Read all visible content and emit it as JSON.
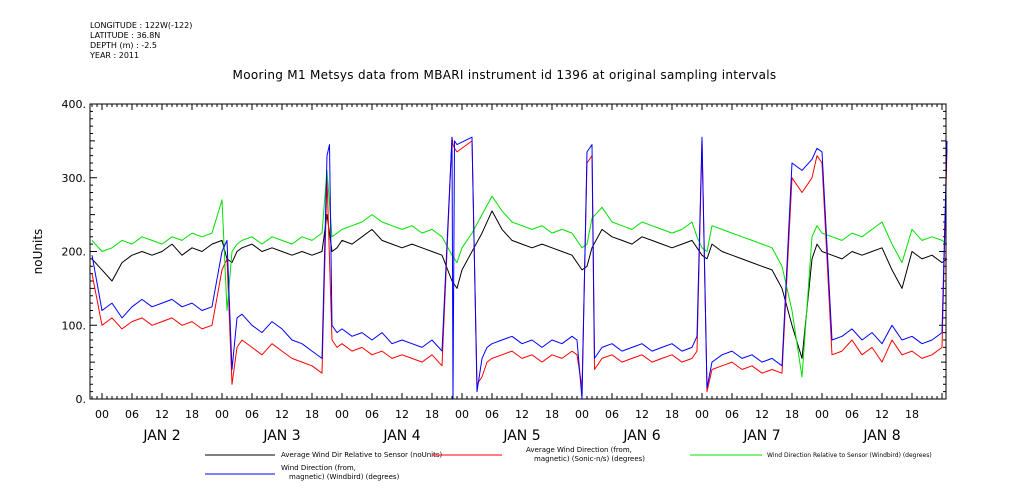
{
  "meta": {
    "longitude": "LONGITUDE : 122W(-122)",
    "latitude": "LATITUDE : 36.8N",
    "depth": "DEPTH (m) : -2.5",
    "year": "YEAR : 2011"
  },
  "chart_data": {
    "type": "line",
    "title": "Mooring M1 Metsys data from MBARI instrument id 1396 at original sampling intervals",
    "ylabel": "noUnits",
    "ylim": [
      0,
      400
    ],
    "yticks": [
      "0.",
      "100.",
      "200.",
      "300.",
      "400."
    ],
    "xlim_hours": [
      0,
      170
    ],
    "x_hour_ticks": [
      "00",
      "06",
      "12",
      "18",
      "00",
      "06",
      "12",
      "18",
      "00",
      "06",
      "12",
      "18",
      "00",
      "06",
      "12",
      "18",
      "00",
      "06",
      "12",
      "18",
      "00",
      "06",
      "12",
      "18",
      "00",
      "06",
      "12",
      "18"
    ],
    "x_day_labels": [
      "JAN  2",
      "JAN  3",
      "JAN  4",
      "JAN  5",
      "JAN  6",
      "JAN  7",
      "JAN  8"
    ],
    "grid": false,
    "legend_position": "bottom",
    "series": [
      {
        "name": "Average Wind Dir Relative to Sensor (noUnits)",
        "color": "#000000",
        "x": [
          -2,
          0,
          2,
          4,
          6,
          8,
          10,
          12,
          14,
          16,
          18,
          20,
          22,
          24,
          25,
          26,
          27,
          28,
          30,
          32,
          34,
          36,
          38,
          40,
          42,
          44,
          45,
          46,
          47,
          48,
          50,
          52,
          54,
          56,
          58,
          60,
          62,
          64,
          66,
          68,
          70,
          71,
          72,
          74,
          76,
          78,
          80,
          82,
          84,
          86,
          88,
          90,
          92,
          94,
          96,
          97,
          98,
          100,
          102,
          104,
          106,
          108,
          110,
          112,
          114,
          116,
          118,
          119,
          120,
          121,
          122,
          124,
          126,
          128,
          130,
          132,
          134,
          136,
          138,
          140,
          142,
          143,
          144,
          146,
          148,
          150,
          152,
          154,
          156,
          158,
          160,
          162,
          164,
          166,
          168,
          169
        ],
        "y": [
          190,
          175,
          160,
          185,
          195,
          200,
          195,
          200,
          210,
          195,
          205,
          200,
          210,
          215,
          190,
          185,
          200,
          205,
          210,
          200,
          205,
          200,
          195,
          200,
          195,
          200,
          250,
          200,
          205,
          215,
          210,
          220,
          230,
          215,
          210,
          205,
          210,
          205,
          200,
          195,
          160,
          150,
          175,
          200,
          225,
          255,
          230,
          215,
          210,
          205,
          210,
          205,
          200,
          195,
          175,
          180,
          205,
          230,
          220,
          215,
          210,
          220,
          215,
          210,
          205,
          210,
          215,
          205,
          195,
          190,
          210,
          200,
          195,
          190,
          185,
          180,
          175,
          150,
          100,
          55,
          190,
          210,
          200,
          195,
          190,
          200,
          195,
          200,
          205,
          175,
          150,
          200,
          190,
          195,
          185,
          190
        ]
      },
      {
        "name": "Average Wind Direction (from, magnetic) (Sonic-n/s) (degrees)",
        "color": "#ff0000",
        "x": [
          -2,
          0,
          2,
          4,
          6,
          8,
          10,
          12,
          14,
          16,
          18,
          20,
          22,
          24,
          25,
          26,
          27,
          28,
          30,
          32,
          34,
          36,
          38,
          40,
          42,
          44,
          45,
          46,
          47,
          48,
          50,
          52,
          54,
          56,
          58,
          60,
          62,
          64,
          66,
          68,
          70,
          70.2,
          70.5,
          71,
          74,
          75,
          76,
          77,
          78,
          80,
          82,
          84,
          86,
          88,
          90,
          92,
          94,
          95,
          96,
          97,
          98,
          98.5,
          100,
          102,
          104,
          106,
          108,
          110,
          112,
          114,
          116,
          118,
          119,
          120,
          121,
          122,
          124,
          126,
          128,
          130,
          132,
          134,
          136,
          138,
          140,
          142,
          143,
          144,
          146,
          148,
          150,
          152,
          154,
          156,
          158,
          160,
          162,
          164,
          166,
          168,
          169
        ],
        "y": [
          170,
          100,
          110,
          95,
          105,
          110,
          100,
          105,
          110,
          100,
          105,
          95,
          100,
          175,
          190,
          20,
          70,
          80,
          70,
          60,
          75,
          65,
          55,
          50,
          45,
          35,
          300,
          80,
          70,
          75,
          65,
          70,
          60,
          65,
          55,
          60,
          55,
          50,
          60,
          45,
          355,
          345,
          340,
          335,
          350,
          20,
          30,
          50,
          55,
          60,
          65,
          55,
          60,
          50,
          60,
          55,
          65,
          60,
          15,
          320,
          330,
          40,
          55,
          60,
          50,
          55,
          60,
          50,
          55,
          60,
          50,
          55,
          65,
          350,
          10,
          40,
          45,
          50,
          40,
          45,
          35,
          40,
          35,
          300,
          280,
          300,
          330,
          320,
          60,
          65,
          80,
          60,
          70,
          50,
          80,
          60,
          65,
          55,
          60,
          70,
          340
        ]
      },
      {
        "name": "Wind Direction Relative to Sensor (Windbird) (degrees)",
        "color": "#00e000",
        "x": [
          -2,
          0,
          2,
          4,
          6,
          8,
          10,
          12,
          14,
          16,
          18,
          20,
          22,
          24,
          25,
          26,
          27,
          28,
          30,
          32,
          34,
          36,
          38,
          40,
          42,
          44,
          45,
          46,
          47,
          48,
          50,
          52,
          54,
          56,
          58,
          60,
          62,
          64,
          66,
          68,
          70,
          71,
          72,
          74,
          76,
          78,
          80,
          82,
          84,
          86,
          88,
          90,
          92,
          94,
          96,
          97,
          98,
          100,
          102,
          104,
          106,
          108,
          110,
          112,
          114,
          116,
          118,
          119,
          120,
          121,
          122,
          124,
          126,
          128,
          130,
          132,
          134,
          136,
          138,
          140,
          142,
          143,
          144,
          146,
          148,
          150,
          152,
          154,
          156,
          158,
          160,
          162,
          164,
          166,
          168,
          169
        ],
        "y": [
          215,
          200,
          205,
          215,
          210,
          220,
          215,
          210,
          220,
          215,
          225,
          220,
          225,
          270,
          120,
          200,
          210,
          215,
          220,
          210,
          220,
          215,
          210,
          220,
          215,
          225,
          310,
          220,
          225,
          230,
          235,
          240,
          250,
          240,
          235,
          230,
          235,
          225,
          230,
          220,
          195,
          185,
          205,
          225,
          250,
          275,
          255,
          240,
          235,
          230,
          235,
          225,
          230,
          225,
          205,
          210,
          245,
          260,
          240,
          235,
          230,
          240,
          235,
          230,
          225,
          230,
          240,
          220,
          205,
          200,
          235,
          230,
          225,
          220,
          215,
          210,
          205,
          180,
          120,
          30,
          220,
          235,
          225,
          220,
          215,
          225,
          220,
          230,
          240,
          210,
          185,
          230,
          215,
          220,
          215,
          210
        ]
      },
      {
        "name": "Wind Direction (from, magnetic) (Windbird) (degrees)",
        "color": "#0000ff",
        "x": [
          -2,
          0,
          2,
          4,
          6,
          8,
          10,
          12,
          14,
          16,
          18,
          20,
          22,
          24,
          25,
          26,
          27,
          28,
          30,
          32,
          34,
          36,
          38,
          40,
          42,
          44,
          45,
          45.5,
          46,
          47,
          48,
          50,
          52,
          54,
          56,
          58,
          60,
          62,
          64,
          66,
          68,
          70,
          70.2,
          70.5,
          71,
          74,
          75,
          76,
          77,
          78,
          80,
          82,
          84,
          86,
          88,
          90,
          92,
          94,
          95,
          96,
          97,
          98,
          98.5,
          100,
          102,
          104,
          106,
          108,
          110,
          112,
          114,
          116,
          118,
          119,
          120,
          121,
          122,
          124,
          126,
          128,
          130,
          132,
          134,
          136,
          138,
          140,
          142,
          143,
          144,
          146,
          148,
          150,
          152,
          154,
          156,
          158,
          160,
          162,
          164,
          166,
          168,
          169
        ],
        "y": [
          195,
          120,
          130,
          110,
          125,
          135,
          125,
          130,
          135,
          125,
          130,
          120,
          125,
          200,
          215,
          40,
          110,
          115,
          100,
          90,
          105,
          95,
          80,
          75,
          65,
          55,
          330,
          345,
          100,
          90,
          95,
          85,
          90,
          80,
          90,
          75,
          80,
          75,
          70,
          80,
          65,
          355,
          0,
          350,
          345,
          355,
          10,
          55,
          70,
          75,
          80,
          85,
          75,
          80,
          70,
          80,
          75,
          85,
          80,
          0,
          335,
          345,
          55,
          70,
          75,
          65,
          70,
          75,
          65,
          70,
          75,
          65,
          70,
          85,
          355,
          15,
          50,
          60,
          65,
          55,
          60,
          50,
          55,
          45,
          320,
          310,
          325,
          340,
          335,
          80,
          85,
          95,
          80,
          90,
          75,
          100,
          80,
          85,
          75,
          80,
          90,
          350
        ]
      }
    ]
  }
}
